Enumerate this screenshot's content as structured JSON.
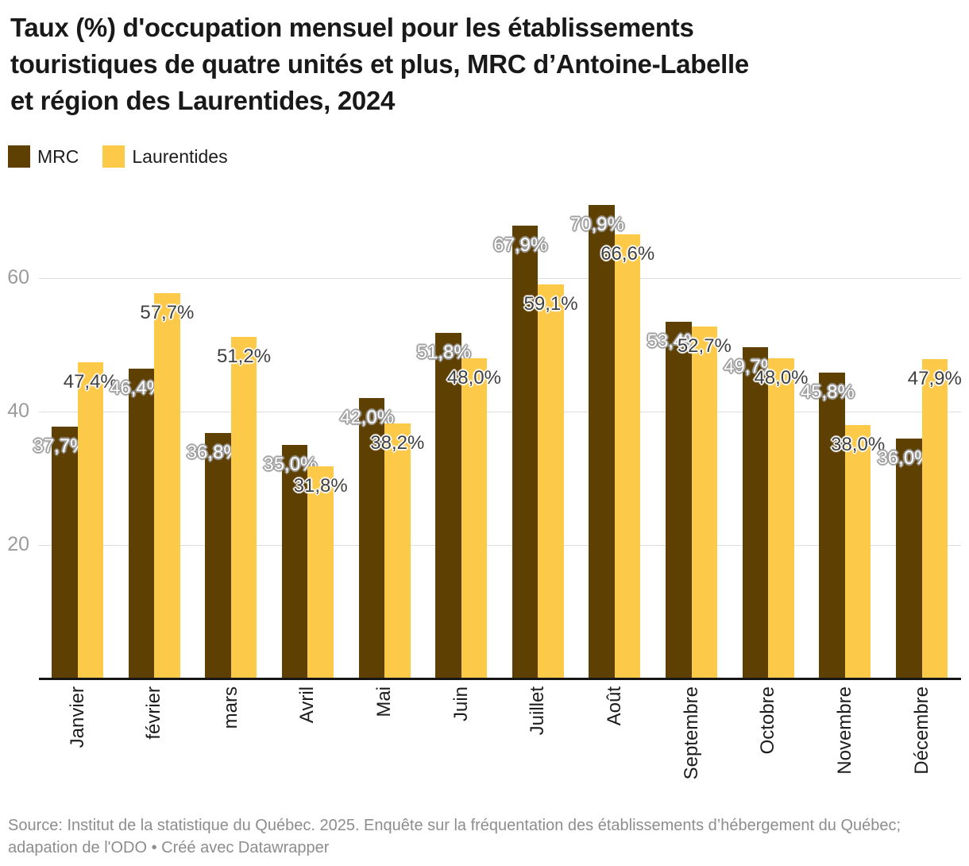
{
  "title_lines": [
    "Taux (%) d'occupation mensuel pour les établissements",
    "touristiques de quatre unités et plus, MRC d’Antoine-Labelle",
    "et région des Laurentides, 2024"
  ],
  "legend": {
    "items": [
      {
        "label": "MRC",
        "color": "#5e4003"
      },
      {
        "label": "Laurentides",
        "color": "#fcc948"
      }
    ]
  },
  "chart_data": {
    "type": "bar",
    "categories": [
      "Janvier",
      "février",
      "mars",
      "Avril",
      "Mai",
      "Juin",
      "Juillet",
      "Août",
      "Septembre",
      "Octobre",
      "Novembre",
      "Décembre"
    ],
    "series": [
      {
        "name": "MRC",
        "color": "#5e4003",
        "values": [
          37.7,
          46.4,
          36.8,
          35.0,
          42.0,
          51.8,
          67.9,
          70.9,
          53.4,
          49.7,
          45.8,
          36.0
        ]
      },
      {
        "name": "Laurentides",
        "color": "#fcc948",
        "values": [
          47.4,
          57.7,
          51.2,
          31.8,
          38.2,
          48.0,
          59.1,
          66.6,
          52.7,
          48.0,
          38.0,
          47.9
        ]
      }
    ],
    "value_suffix": "%",
    "decimal_separator": ",",
    "yticks": [
      20,
      40,
      60
    ],
    "ylim": [
      0,
      75
    ],
    "grid": "horizontal",
    "legend_position": "top-left",
    "bar_labels_visible": true
  },
  "footer": {
    "source_text": "Source: Institut de la statistique du Québec. 2025. Enquête sur la fréquentation des établissements d’hébergement du Québec; adapation de l'ODO",
    "separator": " • ",
    "credit_label": "Créé avec Datawrapper"
  }
}
